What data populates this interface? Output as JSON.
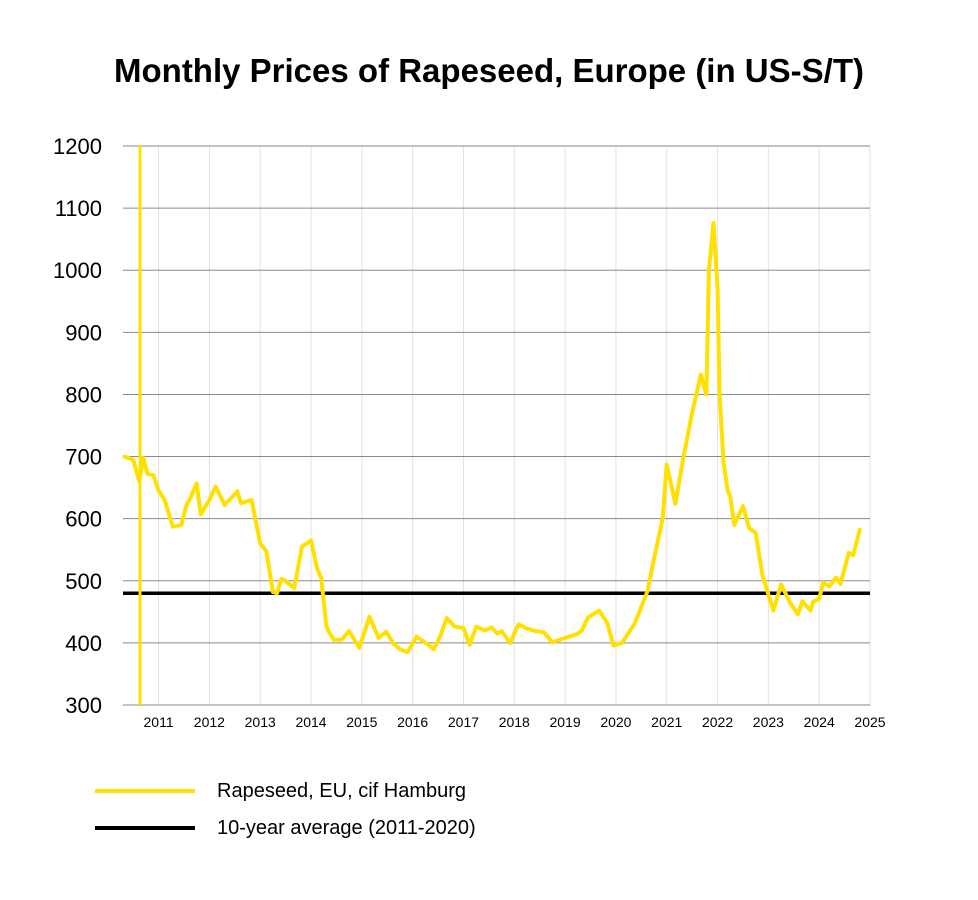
{
  "chart_data": {
    "type": "line",
    "title": "Monthly Prices of Rapeseed, Europe (in US-S/T)",
    "xlabel": "",
    "ylabel": "",
    "ylim": [
      300,
      1200
    ],
    "xlim": [
      2010.3,
      2025
    ],
    "yticks": [
      "300",
      "400",
      "500",
      "600",
      "700",
      "800",
      "900",
      "1000",
      "1100",
      "1200"
    ],
    "xticks": [
      "2011",
      "2012",
      "2013",
      "2014",
      "2015",
      "2016",
      "2017",
      "2018",
      "2019",
      "2020",
      "2021",
      "2022",
      "2023",
      "2024",
      "2025"
    ],
    "grid": true,
    "legend_position": "bottom-left",
    "series": [
      {
        "name": "Rapeseed, EU, cif Hamburg",
        "color": "#ffe000",
        "x": [
          2010.33,
          2010.5,
          2010.62,
          2010.7,
          2010.78,
          2010.9,
          2011.0,
          2011.12,
          2011.28,
          2011.45,
          2011.55,
          2011.62,
          2011.75,
          2011.83,
          2012.0,
          2012.12,
          2012.3,
          2012.45,
          2012.55,
          2012.62,
          2012.83,
          2013.0,
          2013.12,
          2013.25,
          2013.33,
          2013.42,
          2013.5,
          2013.67,
          2013.82,
          2014.0,
          2014.12,
          2014.2,
          2014.3,
          2014.35,
          2014.45,
          2014.6,
          2014.75,
          2014.95,
          2015.15,
          2015.33,
          2015.48,
          2015.62,
          2015.75,
          2015.9,
          2016.08,
          2016.2,
          2016.42,
          2016.55,
          2016.67,
          2016.83,
          2017.0,
          2017.12,
          2017.25,
          2017.42,
          2017.55,
          2017.67,
          2017.75,
          2017.92,
          2018.08,
          2018.25,
          2018.42,
          2018.58,
          2018.75,
          2018.92,
          2019.08,
          2019.25,
          2019.33,
          2019.45,
          2019.67,
          2019.83,
          2019.95,
          2020.12,
          2020.37,
          2020.62,
          2020.75,
          2020.92,
          2021.0,
          2021.17,
          2021.33,
          2021.5,
          2021.67,
          2021.78,
          2021.83,
          2021.92,
          2022.0,
          2022.04,
          2022.12,
          2022.2,
          2022.25,
          2022.33,
          2022.5,
          2022.62,
          2022.75,
          2022.88,
          2023.1,
          2023.25,
          2023.42,
          2023.58,
          2023.67,
          2023.83,
          2023.88,
          2024.0,
          2024.08,
          2024.2,
          2024.33,
          2024.42,
          2024.58,
          2024.67,
          2024.8
        ],
        "values": [
          700,
          695,
          660,
          698,
          672,
          670,
          645,
          630,
          587,
          590,
          622,
          632,
          657,
          607,
          630,
          652,
          622,
          635,
          644,
          625,
          630,
          560,
          548,
          482,
          480,
          503,
          500,
          488,
          555,
          565,
          520,
          505,
          428,
          418,
          405,
          405,
          419,
          392,
          442,
          408,
          418,
          399,
          390,
          385,
          410,
          403,
          390,
          412,
          440,
          426,
          424,
          397,
          426,
          420,
          425,
          415,
          419,
          400,
          430,
          423,
          419,
          417,
          401,
          406,
          410,
          415,
          420,
          441,
          452,
          432,
          396,
          400,
          431,
          483,
          535,
          600,
          687,
          624,
          700,
          770,
          832,
          800,
          1000,
          1076,
          970,
          800,
          690,
          645,
          635,
          590,
          620,
          585,
          577,
          510,
          452,
          494,
          466,
          446,
          467,
          452,
          466,
          471,
          497,
          491,
          505,
          495,
          545,
          541,
          582
        ]
      },
      {
        "name": "10-year average (2011-2020)",
        "color": "#000000",
        "x": [
          2010.3,
          2025
        ],
        "values": [
          480,
          480
        ]
      }
    ]
  }
}
